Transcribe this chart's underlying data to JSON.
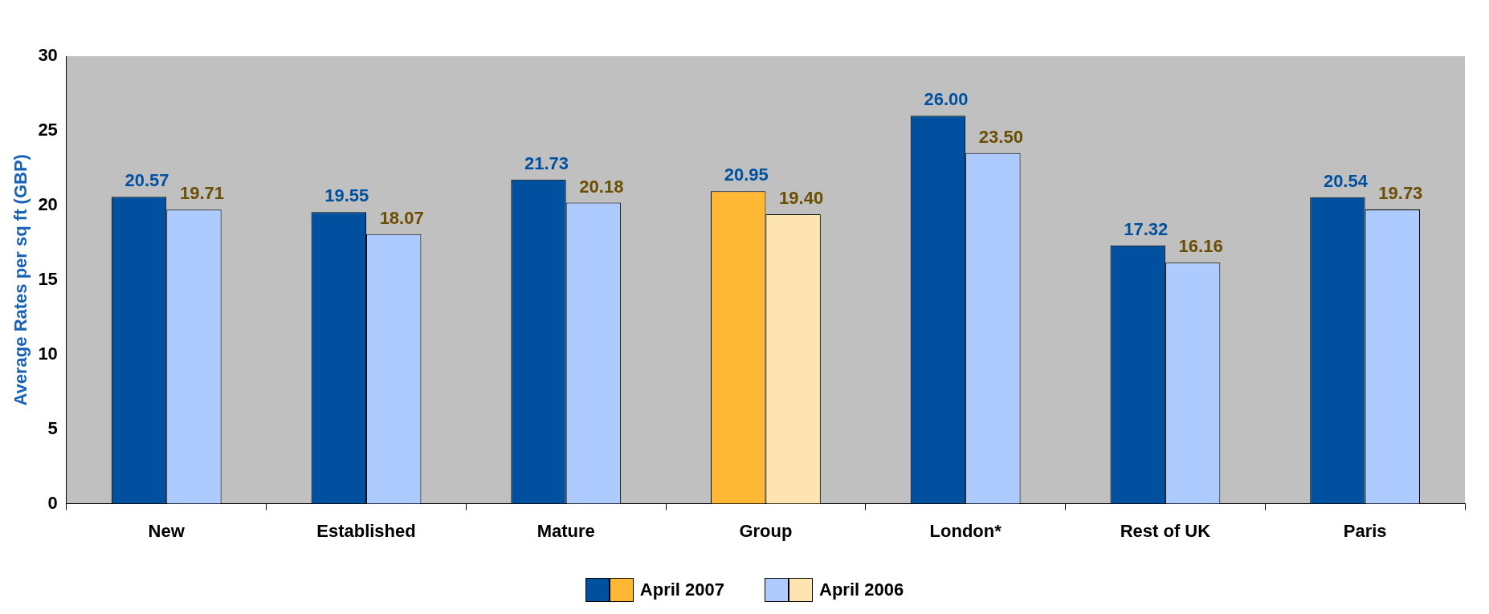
{
  "chart_data": {
    "type": "bar",
    "ylabel": "Average Rates per sq ft (GBP)",
    "categories": [
      "New",
      "Established",
      "Mature",
      "Group",
      "London*",
      "Rest of UK",
      "Paris"
    ],
    "series": [
      {
        "name": "April 2007",
        "color": "#0050a0",
        "colors": [
          "#0050a0",
          "#0050a0",
          "#0050a0",
          "#ffb833",
          "#0050a0",
          "#0050a0",
          "#0050a0"
        ],
        "values": [
          20.57,
          19.55,
          21.73,
          20.95,
          26.0,
          17.32,
          20.54
        ],
        "value_labels": [
          "20.57",
          "19.55",
          "21.73",
          "20.95",
          "26.00",
          "17.32",
          "20.54"
        ]
      },
      {
        "name": "April 2006",
        "color": "#6b4e00",
        "colors": [
          "#aecbff",
          "#aecbff",
          "#aecbff",
          "#fde4b0",
          "#aecbff",
          "#aecbff",
          "#aecbff"
        ],
        "values": [
          19.71,
          18.07,
          20.18,
          19.4,
          23.5,
          16.16,
          19.73
        ],
        "value_labels": [
          "19.71",
          "18.07",
          "20.18",
          "19.40",
          "23.50",
          "16.16",
          "19.73"
        ]
      }
    ],
    "ylim": [
      0,
      30
    ],
    "yticks": [
      0,
      5,
      10,
      15,
      20,
      25,
      30
    ],
    "grid": false,
    "legend": "bottom"
  }
}
